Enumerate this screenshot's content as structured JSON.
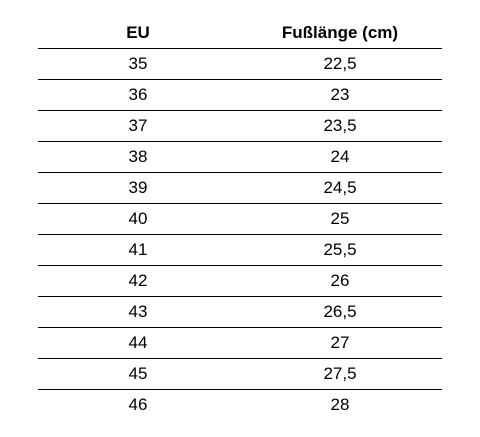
{
  "table": {
    "headers": [
      "EU",
      "Fußlänge (cm)"
    ],
    "rows": [
      [
        "35",
        "22,5"
      ],
      [
        "36",
        "23"
      ],
      [
        "37",
        "23,5"
      ],
      [
        "38",
        "24"
      ],
      [
        "39",
        "24,5"
      ],
      [
        "40",
        "25"
      ],
      [
        "41",
        "25,5"
      ],
      [
        "42",
        "26"
      ],
      [
        "43",
        "26,5"
      ],
      [
        "44",
        "27"
      ],
      [
        "45",
        "27,5"
      ],
      [
        "46",
        "28"
      ]
    ]
  }
}
